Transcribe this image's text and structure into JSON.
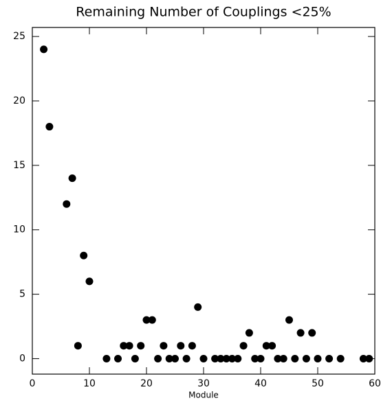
{
  "chart_data": {
    "type": "scatter",
    "title": "Remaining Number of Couplings <25%",
    "x_label": "Module",
    "x": [
      2,
      3,
      6,
      7,
      8,
      9,
      10,
      13,
      15,
      16,
      17,
      18,
      19,
      20,
      21,
      22,
      23,
      24,
      25,
      26,
      27,
      28,
      29,
      30,
      32,
      33,
      34,
      35,
      36,
      37,
      38,
      39,
      40,
      41,
      42,
      43,
      44,
      45,
      46,
      47,
      48,
      49,
      50,
      52,
      54,
      58,
      59
    ],
    "values": [
      24,
      18,
      12,
      14,
      1,
      8,
      6,
      0,
      0,
      1,
      1,
      0,
      1,
      3,
      3,
      0,
      1,
      0,
      0,
      1,
      0,
      1,
      4,
      0,
      0,
      0,
      0,
      0,
      0,
      1,
      2,
      0,
      0,
      1,
      1,
      0,
      0,
      3,
      0,
      2,
      0,
      2,
      0,
      0,
      0,
      0,
      0
    ],
    "color": "#000000",
    "xlim": [
      0,
      60
    ],
    "xticks": [
      0,
      10,
      20,
      30,
      40,
      50,
      60
    ],
    "ylim": [
      -1.2,
      25.7
    ],
    "yticks": [
      0,
      5,
      10,
      15,
      20,
      25
    ]
  }
}
